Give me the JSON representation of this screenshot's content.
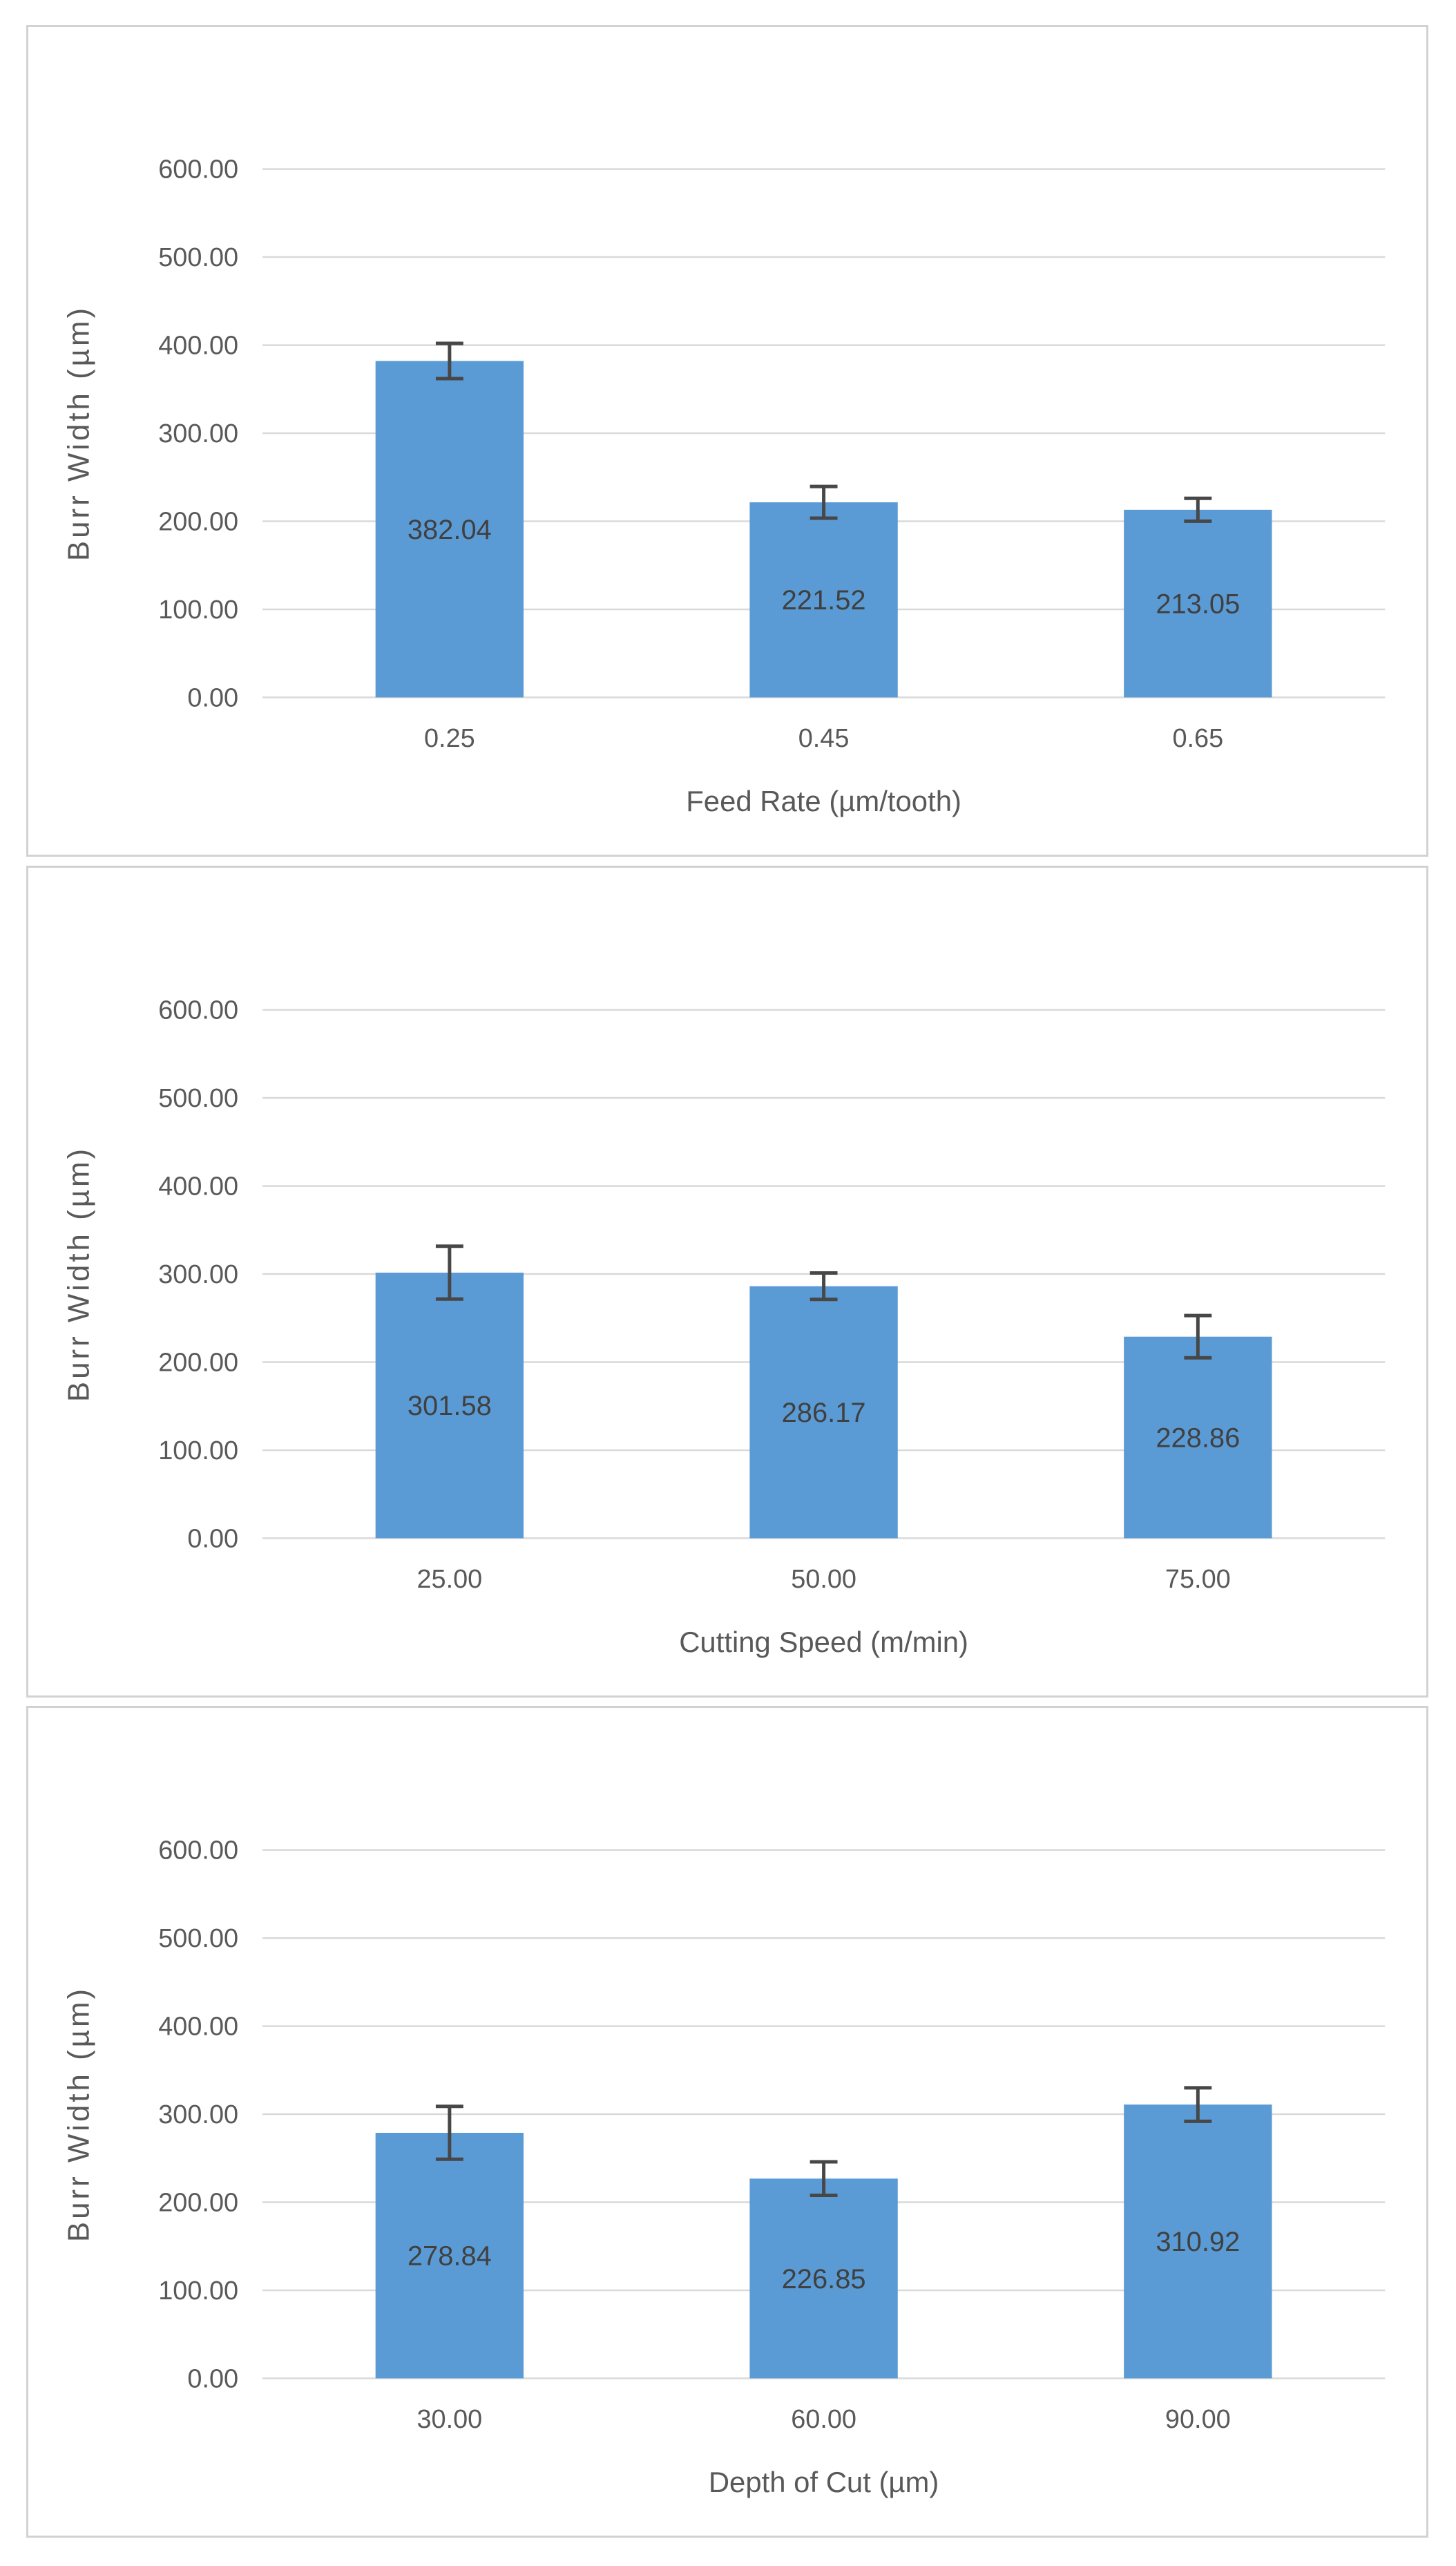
{
  "figure": {
    "background_color": "#ffffff",
    "panel_border_color": "#d2d2d2",
    "panel_count": 3
  },
  "colors": {
    "bar_fill": "#5B9BD5",
    "gridline": "#d9d9d9",
    "error_bar": "#474747",
    "tick_text": "#595959",
    "data_label_text": "#404040",
    "axis_title_text": "#595959"
  },
  "chart_data": [
    {
      "type": "bar",
      "title": "",
      "xlabel": "Feed Rate (µm/tooth)",
      "ylabel": "Burr Width (µm)",
      "ylim": [
        0,
        600
      ],
      "ytick_step": 100,
      "ytick_labels": [
        "0.00",
        "100.00",
        "200.00",
        "300.00",
        "400.00",
        "500.00",
        "600.00"
      ],
      "grid": true,
      "legend": false,
      "categories": [
        "0.25",
        "0.45",
        "0.65"
      ],
      "values": [
        382.04,
        221.52,
        213.05
      ],
      "data_labels": [
        "382.04",
        "221.52",
        "213.05"
      ],
      "error_plus": [
        20,
        18,
        13
      ],
      "error_minus": [
        20,
        18,
        13
      ]
    },
    {
      "type": "bar",
      "title": "",
      "xlabel": "Cutting Speed (m/min)",
      "ylabel": "Burr Width (µm)",
      "ylim": [
        0,
        600
      ],
      "ytick_step": 100,
      "ytick_labels": [
        "0.00",
        "100.00",
        "200.00",
        "300.00",
        "400.00",
        "500.00",
        "600.00"
      ],
      "grid": true,
      "legend": false,
      "categories": [
        "25.00",
        "50.00",
        "75.00"
      ],
      "values": [
        301.58,
        286.17,
        228.86
      ],
      "data_labels": [
        "301.58",
        "286.17",
        "228.86"
      ],
      "error_plus": [
        30,
        15,
        24
      ],
      "error_minus": [
        30,
        15,
        24
      ]
    },
    {
      "type": "bar",
      "title": "",
      "xlabel": "Depth of Cut (µm)",
      "ylabel": "Burr Width (µm)",
      "ylim": [
        0,
        600
      ],
      "ytick_step": 100,
      "ytick_labels": [
        "0.00",
        "100.00",
        "200.00",
        "300.00",
        "400.00",
        "500.00",
        "600.00"
      ],
      "grid": true,
      "legend": false,
      "categories": [
        "30.00",
        "60.00",
        "90.00"
      ],
      "values": [
        278.84,
        226.85,
        310.92
      ],
      "data_labels": [
        "278.84",
        "226.85",
        "310.92"
      ],
      "error_plus": [
        30,
        19,
        19
      ],
      "error_minus": [
        30,
        19,
        19
      ]
    }
  ]
}
